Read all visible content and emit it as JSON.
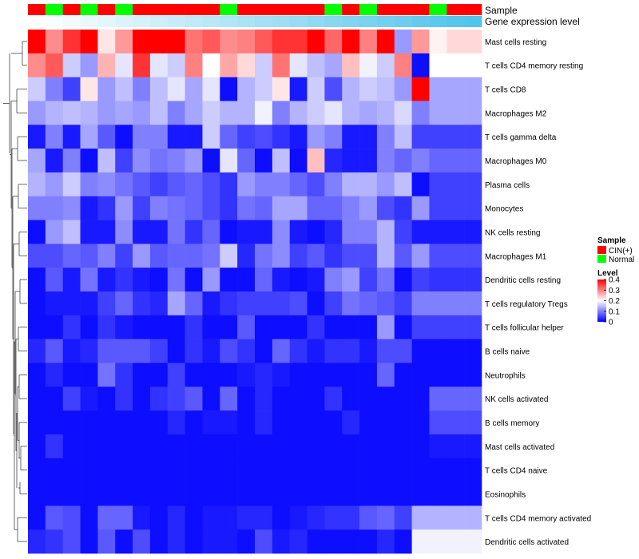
{
  "chart_data": {
    "type": "heatmap",
    "title": "",
    "annotation_tracks": [
      {
        "label": "Sample",
        "values": [
          "CIN(+)",
          "Normal",
          "CIN(+)",
          "Normal",
          "CIN(+)",
          "Normal",
          "CIN(+)",
          "CIN(+)",
          "CIN(+)",
          "CIN(+)",
          "CIN(+)",
          "Normal",
          "CIN(+)",
          "CIN(+)",
          "CIN(+)",
          "CIN(+)",
          "CIN(+)",
          "Normal",
          "CIN(+)",
          "Normal",
          "CIN(+)",
          "CIN(+)",
          "CIN(+)",
          "Normal",
          "CIN(+)",
          "CIN(+)"
        ]
      },
      {
        "label": "Gene expression level",
        "values": [
          0,
          0.04,
          0.08,
          0.12,
          0.16,
          0.2,
          0.24,
          0.28,
          0.32,
          0.36,
          0.4,
          0.44,
          0.48,
          0.52,
          0.56,
          0.6,
          0.64,
          0.68,
          0.72,
          0.76,
          0.8,
          0.84,
          0.88,
          0.92,
          0.96,
          1.0
        ]
      }
    ],
    "rows": [
      "Mast cells resting",
      "T cells CD4 memory resting",
      "T cells CD8",
      "Macrophages M2",
      "T cells gamma delta",
      "Macrophages M0",
      "Plasma cells",
      "Monocytes",
      "NK cells resting",
      "Macrophages M1",
      "Dendritic cells resting",
      "T cells regulatory  Tregs",
      "T cells follicular helper",
      "B cells naive",
      "Neutrophils",
      "NK cells activated",
      "B cells memory",
      "Mast cells activated",
      "T cells CD4 naive",
      "Eosinophils",
      "T cells CD4 memory activated",
      "Dendritic cells activated"
    ],
    "values": [
      [
        0.4,
        0.29,
        0.36,
        0.4,
        0.22,
        0.28,
        0.4,
        0.4,
        0.4,
        0.31,
        0.33,
        0.29,
        0.3,
        0.33,
        0.36,
        0.36,
        0.4,
        0.32,
        0.4,
        0.3,
        0.4,
        0.12,
        0.28,
        0.21,
        0.23,
        0.23
      ],
      [
        0.29,
        0.33,
        0.16,
        0.12,
        0.26,
        0.18,
        0.36,
        0.18,
        0.16,
        0.3,
        0.2,
        0.27,
        0.23,
        0.16,
        0.31,
        0.18,
        0.15,
        0.13,
        0.25,
        0.19,
        0.16,
        0.3,
        0.01,
        0.2,
        0.2,
        0.2
      ],
      [
        0.16,
        0.1,
        0.05,
        0.22,
        0.12,
        0.15,
        0.1,
        0.15,
        0.18,
        0.13,
        0.18,
        0.01,
        0.14,
        0.16,
        0.22,
        0.02,
        0.16,
        0.06,
        0.14,
        0.16,
        0.15,
        0.12,
        0.4,
        0.13,
        0.13,
        0.13
      ],
      [
        0.12,
        0.14,
        0.15,
        0.14,
        0.12,
        0.13,
        0.12,
        0.15,
        0.1,
        0.13,
        0.16,
        0.14,
        0.14,
        0.19,
        0.1,
        0.14,
        0.16,
        0.18,
        0.14,
        0.13,
        0.14,
        0.17,
        0.1,
        0.13,
        0.13,
        0.13
      ],
      [
        0.02,
        0.1,
        0.02,
        0.13,
        0.07,
        0.01,
        0.1,
        0.1,
        0.02,
        0.02,
        0.16,
        0.08,
        0.05,
        0.06,
        0.04,
        0.02,
        0.12,
        0.1,
        0.02,
        0.02,
        0.1,
        0.15,
        0.05,
        0.05,
        0.05,
        0.05
      ],
      [
        0.13,
        0.02,
        0.1,
        0.01,
        0.15,
        0.05,
        0.11,
        0.09,
        0.1,
        0.12,
        0.01,
        0.18,
        0.08,
        0.01,
        0.15,
        0.01,
        0.25,
        0.03,
        0.02,
        0.02,
        0.1,
        0.08,
        0.1,
        0.08,
        0.08,
        0.08
      ],
      [
        0.14,
        0.12,
        0.16,
        0.1,
        0.11,
        0.09,
        0.07,
        0.05,
        0.07,
        0.08,
        0.06,
        0.04,
        0.12,
        0.1,
        0.1,
        0.08,
        0.06,
        0.1,
        0.14,
        0.14,
        0.12,
        0.15,
        0.01,
        0.05,
        0.05,
        0.05
      ],
      [
        0.1,
        0.1,
        0.11,
        0.02,
        0.04,
        0.12,
        0.05,
        0.1,
        0.09,
        0.08,
        0.06,
        0.04,
        0.09,
        0.08,
        0.13,
        0.13,
        0.08,
        0.08,
        0.1,
        0.12,
        0.06,
        0.04,
        0.12,
        0.05,
        0.05,
        0.05
      ],
      [
        0.01,
        0.12,
        0.15,
        0.02,
        0.02,
        0.11,
        0.02,
        0.02,
        0.09,
        0.04,
        0.08,
        0.01,
        0.02,
        0.02,
        0.11,
        0.02,
        0.01,
        0.03,
        0.1,
        0.1,
        0.14,
        0.05,
        0.02,
        0.02,
        0.02,
        0.02
      ],
      [
        0.06,
        0.06,
        0.08,
        0.07,
        0.1,
        0.05,
        0.12,
        0.07,
        0.08,
        0.08,
        0.09,
        0.16,
        0.03,
        0.09,
        0.11,
        0.05,
        0.07,
        0.04,
        0.06,
        0.06,
        0.14,
        0.07,
        0.12,
        0.06,
        0.06,
        0.06
      ],
      [
        0.01,
        0.07,
        0.02,
        0.09,
        0.02,
        0.04,
        0.02,
        0.01,
        0.09,
        0.01,
        0.12,
        0.01,
        0.01,
        0.08,
        0.02,
        0.01,
        0.02,
        0.1,
        0.12,
        0.05,
        0.09,
        0.01,
        0.05,
        0.04,
        0.04,
        0.04
      ],
      [
        0.01,
        0.02,
        0.02,
        0.02,
        0.05,
        0.08,
        0.04,
        0.03,
        0.13,
        0.08,
        0.02,
        0.04,
        0.05,
        0.05,
        0.05,
        0.06,
        0.01,
        0.05,
        0.09,
        0.08,
        0.07,
        0.05,
        0.1,
        0.1,
        0.1,
        0.1
      ],
      [
        0.01,
        0.01,
        0.04,
        0.01,
        0.04,
        0.02,
        0.01,
        0.01,
        0.01,
        0.04,
        0.01,
        0.01,
        0.07,
        0.01,
        0.01,
        0.01,
        0.04,
        0.01,
        0.01,
        0.01,
        0.12,
        0.01,
        0.05,
        0.05,
        0.05,
        0.05
      ],
      [
        0.03,
        0.07,
        0.02,
        0.03,
        0.07,
        0.07,
        0.07,
        0.05,
        0.01,
        0.04,
        0.02,
        0.06,
        0.04,
        0.01,
        0.08,
        0.04,
        0.02,
        0.04,
        0.04,
        0.02,
        0.06,
        0.06,
        0.01,
        0.01,
        0.01,
        0.01
      ],
      [
        0.01,
        0.03,
        0.01,
        0.01,
        0.09,
        0.04,
        0.01,
        0.01,
        0.05,
        0.01,
        0.01,
        0.01,
        0.02,
        0.03,
        0.02,
        0.01,
        0.01,
        0.01,
        0.01,
        0.01,
        0.08,
        0.01,
        0.01,
        0.01,
        0.01,
        0.01
      ],
      [
        0.01,
        0.01,
        0.05,
        0.02,
        0.01,
        0.04,
        0.01,
        0.04,
        0.05,
        0.07,
        0.01,
        0.08,
        0.01,
        0.03,
        0.01,
        0.01,
        0.01,
        0.04,
        0.01,
        0.01,
        0.01,
        0.01,
        0.01,
        0.08,
        0.08,
        0.08
      ],
      [
        0.01,
        0.01,
        0.01,
        0.01,
        0.01,
        0.01,
        0.01,
        0.01,
        0.03,
        0.01,
        0.02,
        0.02,
        0.01,
        0.03,
        0.01,
        0.01,
        0.01,
        0.01,
        0.03,
        0.01,
        0.01,
        0.01,
        0.01,
        0.06,
        0.06,
        0.06
      ],
      [
        0.01,
        0.04,
        0.01,
        0.01,
        0.01,
        0.01,
        0.01,
        0.01,
        0.01,
        0.01,
        0.01,
        0.01,
        0.01,
        0.01,
        0.01,
        0.01,
        0.01,
        0.01,
        0.01,
        0.01,
        0.01,
        0.01,
        0.01,
        0.02,
        0.02,
        0.02
      ],
      [
        0.01,
        0.01,
        0.01,
        0.01,
        0.01,
        0.01,
        0.01,
        0.01,
        0.01,
        0.01,
        0.01,
        0.01,
        0.01,
        0.01,
        0.01,
        0.01,
        0.01,
        0.01,
        0.01,
        0.01,
        0.01,
        0.01,
        0.01,
        0.01,
        0.01,
        0.01
      ],
      [
        0.01,
        0.01,
        0.01,
        0.01,
        0.01,
        0.01,
        0.01,
        0.01,
        0.01,
        0.01,
        0.01,
        0.01,
        0.01,
        0.01,
        0.01,
        0.01,
        0.01,
        0.01,
        0.01,
        0.01,
        0.01,
        0.01,
        0.01,
        0.01,
        0.01,
        0.01
      ],
      [
        0.01,
        0.07,
        0.06,
        0.01,
        0.08,
        0.08,
        0.02,
        0.01,
        0.03,
        0.01,
        0.02,
        0.02,
        0.03,
        0.03,
        0.01,
        0.02,
        0.03,
        0.04,
        0.04,
        0.07,
        0.08,
        0.05,
        0.14,
        0.14,
        0.14,
        0.14
      ],
      [
        0.03,
        0.04,
        0.06,
        0.01,
        0.07,
        0.01,
        0.06,
        0.01,
        0.03,
        0.01,
        0.02,
        0.02,
        0.01,
        0.06,
        0.02,
        0.03,
        0.01,
        0.01,
        0.01,
        0.01,
        0.03,
        0.01,
        0.19,
        0.19,
        0.19,
        0.19
      ]
    ],
    "legend": {
      "sample_title": "Sample",
      "sample_entries": [
        {
          "label": "CIN(+)",
          "color": "#ff0000"
        },
        {
          "label": "Normal",
          "color": "#00ff00"
        }
      ],
      "level_title": "Level",
      "level_ticks": [
        "0.4",
        "0.3",
        "0.2",
        "0.1",
        "0"
      ],
      "level_range": [
        0,
        0.4
      ],
      "placement": "right"
    },
    "colors": {
      "low": "#0000ff",
      "mid": "#ffffff",
      "high": "#ff0000",
      "expr_low": "#ffffff",
      "expr_high": "#50c4ec"
    }
  }
}
